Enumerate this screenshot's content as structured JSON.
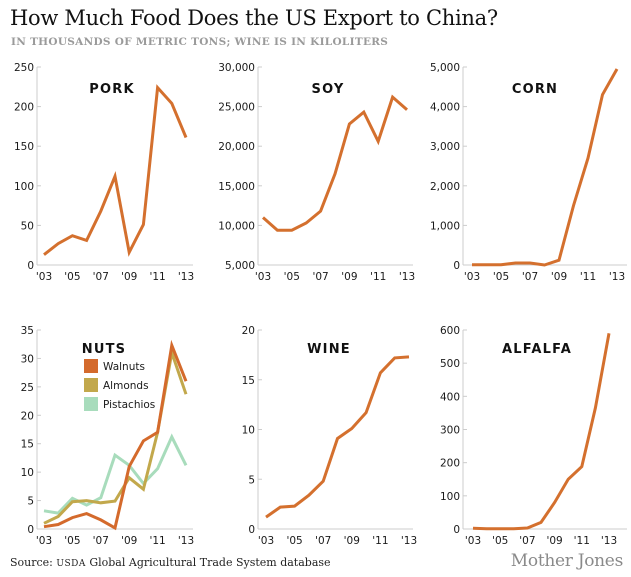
{
  "header": {
    "title": "How Much Food Does the US Export to China?",
    "subtitle": "IN THOUSANDS OF METRIC TONS; WINE IS IN KILOLITERS"
  },
  "footer": {
    "source_prefix": "Source: ",
    "source_agency": "USDA",
    "source_rest": " Global Agricultural Trade System database",
    "brand": "Mother Jones"
  },
  "colors": {
    "line": "#d4702e",
    "walnuts": "#d46a2c",
    "almonds": "#c2a84c",
    "pistachios": "#a8dcbc",
    "axis": "#cccccc"
  },
  "chart_data": [
    {
      "type": "line",
      "title": "PORK",
      "x": [
        2003,
        2004,
        2005,
        2006,
        2007,
        2008,
        2009,
        2010,
        2011,
        2012,
        2013
      ],
      "xtick_labels": [
        "'03",
        "'05",
        "'07",
        "'09",
        "'11",
        "'13"
      ],
      "xticks": [
        2003,
        2005,
        2007,
        2009,
        2011,
        2013
      ],
      "ylim": [
        0,
        250
      ],
      "yticks": [
        0,
        50,
        100,
        150,
        200,
        250
      ],
      "ytick_labels": [
        "0",
        "50",
        "100",
        "150",
        "200",
        "250"
      ],
      "series": [
        {
          "name": "Pork",
          "color_key": "line",
          "values": [
            13,
            27,
            37,
            31,
            68,
            112,
            16,
            51,
            224,
            204,
            161
          ]
        }
      ],
      "grid": false
    },
    {
      "type": "line",
      "title": "SOY",
      "x": [
        2003,
        2004,
        2005,
        2006,
        2007,
        2008,
        2009,
        2010,
        2011,
        2012,
        2013
      ],
      "xtick_labels": [
        "'03",
        "'05",
        "'07",
        "'09",
        "'11",
        "'13"
      ],
      "xticks": [
        2003,
        2005,
        2007,
        2009,
        2011,
        2013
      ],
      "ylim": [
        5000,
        30000
      ],
      "yticks": [
        5000,
        10000,
        15000,
        20000,
        25000,
        30000
      ],
      "ytick_labels": [
        "5,000",
        "10,000",
        "15,000",
        "20,000",
        "25,000",
        "30,000"
      ],
      "series": [
        {
          "name": "Soy",
          "color_key": "line",
          "values": [
            11000,
            9400,
            9400,
            10300,
            11800,
            16500,
            22800,
            24300,
            20600,
            26200,
            24600
          ]
        }
      ],
      "grid": false
    },
    {
      "type": "line",
      "title": "CORN",
      "x": [
        2003,
        2004,
        2005,
        2006,
        2007,
        2008,
        2009,
        2010,
        2011,
        2012,
        2013
      ],
      "xtick_labels": [
        "'03",
        "'05",
        "'07",
        "'09",
        "'11",
        "'13"
      ],
      "xticks": [
        2003,
        2005,
        2007,
        2009,
        2011,
        2013
      ],
      "ylim": [
        0,
        5000
      ],
      "yticks": [
        0,
        1000,
        2000,
        3000,
        4000,
        5000
      ],
      "ytick_labels": [
        "0",
        "1,000",
        "2,000",
        "3,000",
        "4,000",
        "5,000"
      ],
      "series": [
        {
          "name": "Corn",
          "color_key": "line",
          "values": [
            5,
            5,
            5,
            50,
            50,
            0,
            120,
            1500,
            2700,
            4300,
            4950
          ]
        }
      ],
      "grid": false
    },
    {
      "type": "line",
      "title": "NUTS",
      "x": [
        2003,
        2004,
        2005,
        2006,
        2007,
        2008,
        2009,
        2010,
        2011,
        2012,
        2013
      ],
      "xtick_labels": [
        "'03",
        "'05",
        "'07",
        "'09",
        "'11",
        "'13"
      ],
      "xticks": [
        2003,
        2005,
        2007,
        2009,
        2011,
        2013
      ],
      "ylim": [
        0,
        35
      ],
      "yticks": [
        0,
        5,
        10,
        15,
        20,
        25,
        30,
        35
      ],
      "ytick_labels": [
        "0",
        "5",
        "10",
        "15",
        "20",
        "25",
        "30",
        "35"
      ],
      "legend": "top-center",
      "series": [
        {
          "name": "Pistachios",
          "color_key": "pistachios",
          "values": [
            3.2,
            2.8,
            5.4,
            4.2,
            5.5,
            13,
            11.2,
            8,
            10.6,
            16.2,
            11.2
          ]
        },
        {
          "name": "Almonds",
          "color_key": "almonds",
          "values": [
            1.0,
            2.2,
            4.8,
            5.0,
            4.6,
            4.9,
            9,
            7,
            17,
            31,
            23.7
          ]
        },
        {
          "name": "Walnuts",
          "color_key": "walnuts",
          "values": [
            0.4,
            0.8,
            2.0,
            2.7,
            1.6,
            0.2,
            11,
            15.5,
            17,
            32.3,
            26
          ]
        }
      ],
      "legend_order": [
        "Walnuts",
        "Almonds",
        "Pistachios"
      ],
      "grid": false
    },
    {
      "type": "line",
      "title": "WINE",
      "x": [
        2003,
        2004,
        2005,
        2006,
        2007,
        2008,
        2009,
        2010,
        2011,
        2012,
        2013
      ],
      "xtick_labels": [
        "'03",
        "'05",
        "'07",
        "'09",
        "'11",
        "'13"
      ],
      "xticks": [
        2003,
        2005,
        2007,
        2009,
        2011,
        2013
      ],
      "ylim": [
        0,
        20
      ],
      "yticks": [
        0,
        5,
        10,
        15,
        20
      ],
      "ytick_labels": [
        "0",
        "5",
        "10",
        "15",
        "20"
      ],
      "series": [
        {
          "name": "Wine",
          "color_key": "line",
          "values": [
            1.2,
            2.2,
            2.3,
            3.4,
            4.8,
            9.1,
            10.1,
            11.7,
            15.7,
            17.2,
            17.3
          ]
        }
      ],
      "grid": false
    },
    {
      "type": "line",
      "title": "ALFALFA",
      "x": [
        2003,
        2004,
        2005,
        2006,
        2007,
        2008,
        2009,
        2010,
        2011,
        2012,
        2013
      ],
      "xtick_labels": [
        "'03",
        "'05",
        "'07",
        "'09",
        "'11",
        "'13"
      ],
      "xticks": [
        2003,
        2005,
        2007,
        2009,
        2011,
        2013
      ],
      "ylim": [
        0,
        600
      ],
      "yticks": [
        0,
        100,
        200,
        300,
        400,
        500,
        600
      ],
      "ytick_labels": [
        "0",
        "100",
        "200",
        "300",
        "400",
        "500",
        "600"
      ],
      "series": [
        {
          "name": "Alfalfa",
          "color_key": "line",
          "values": [
            2,
            1,
            1,
            1,
            3,
            20,
            80,
            150,
            188,
            365,
            590
          ]
        }
      ],
      "grid": false
    }
  ]
}
